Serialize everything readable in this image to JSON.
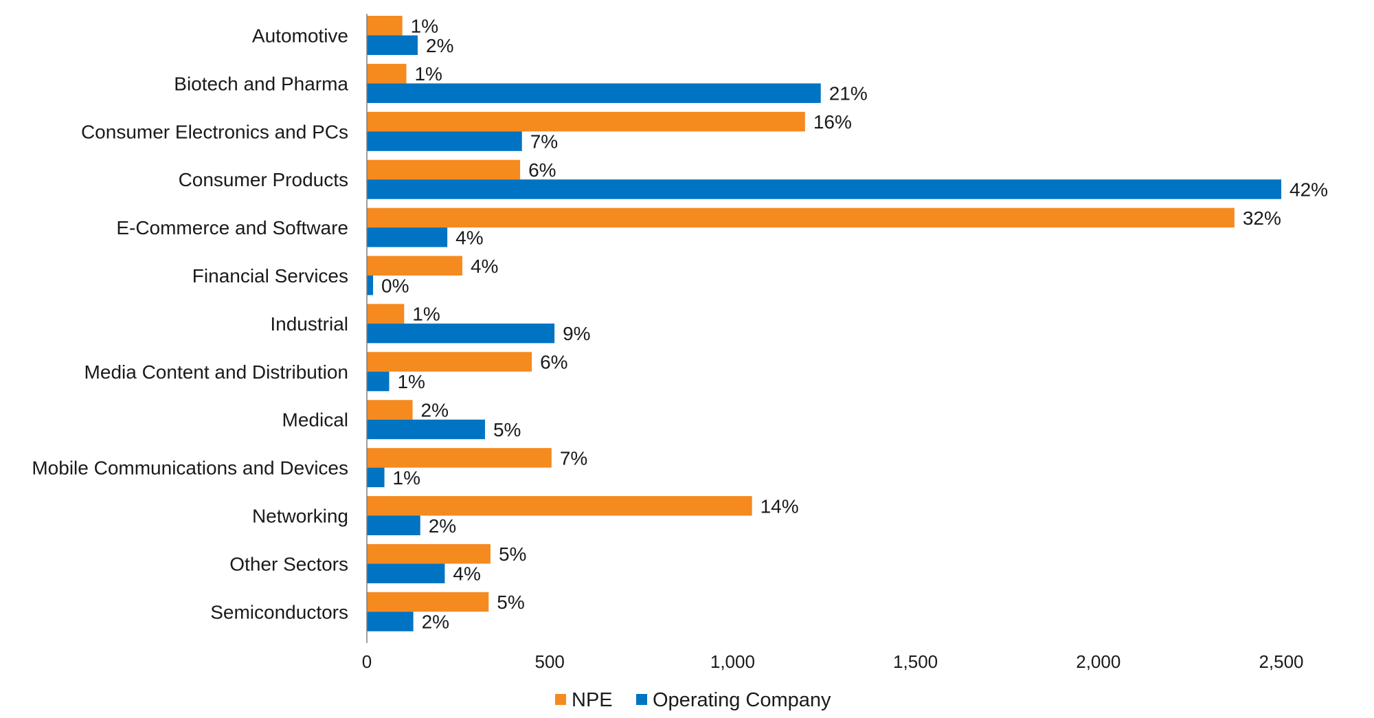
{
  "chart_data": {
    "type": "bar",
    "orientation": "horizontal",
    "title": "",
    "xlabel": "",
    "ylabel": "",
    "xlim": [
      0,
      2500
    ],
    "xticks": [
      0,
      500,
      1000,
      1500,
      2000,
      2500
    ],
    "xtick_labels": [
      "0",
      "500",
      "1,000",
      "1,500",
      "2,000",
      "2,500"
    ],
    "grid": false,
    "legend_position": "bottom",
    "categories": [
      "Automotive",
      "Biotech and Pharma",
      "Consumer Electronics and PCs",
      "Consumer Products",
      "E-Commerce and Software",
      "Financial Services",
      "Industrial",
      "Media Content and Distribution",
      "Medical",
      "Mobile Communications and Devices",
      "Networking",
      "Other Sectors",
      "Semiconductors"
    ],
    "series": [
      {
        "name": "NPE",
        "color": "#F58A1F",
        "values": [
          97,
          108,
          1198,
          419,
          2372,
          261,
          102,
          451,
          125,
          505,
          1053,
          338,
          333
        ],
        "labels": [
          "1%",
          "1%",
          "16%",
          "6%",
          "32%",
          "4%",
          "1%",
          "6%",
          "2%",
          "7%",
          "14%",
          "5%",
          "5%"
        ]
      },
      {
        "name": "Operating Company",
        "color": "#0073C2",
        "values": [
          139,
          1241,
          424,
          2500,
          220,
          17,
          513,
          61,
          323,
          48,
          146,
          213,
          127
        ],
        "labels": [
          "2%",
          "21%",
          "7%",
          "42%",
          "4%",
          "0%",
          "9%",
          "1%",
          "5%",
          "1%",
          "2%",
          "4%",
          "2%"
        ]
      }
    ]
  }
}
